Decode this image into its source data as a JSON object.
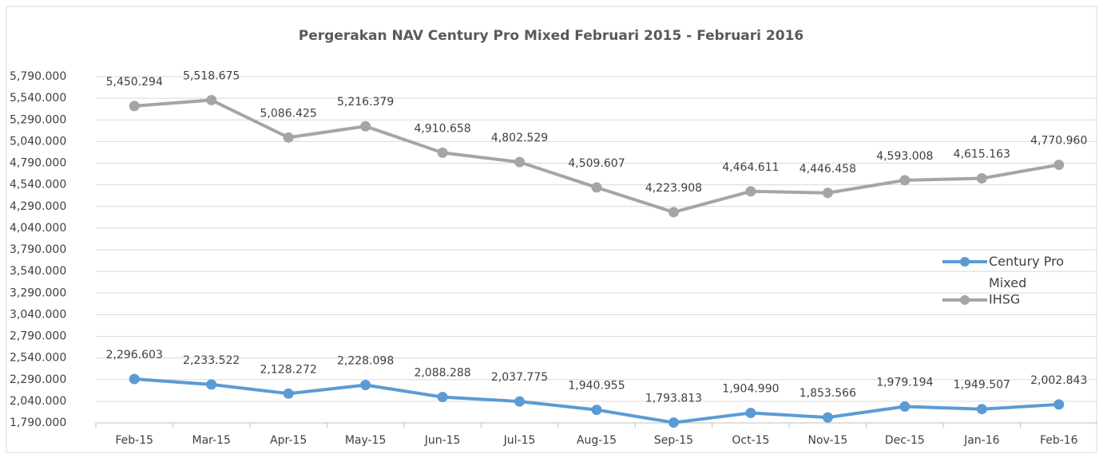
{
  "chart_data": {
    "type": "line",
    "title": "Pergerakan NAV Century Pro Mixed Februari 2015 - Februari 2016",
    "categories": [
      "Feb-15",
      "Mar-15",
      "Apr-15",
      "May-15",
      "Jun-15",
      "Jul-15",
      "Aug-15",
      "Sep-15",
      "Oct-15",
      "Nov-15",
      "Dec-15",
      "Jan-16",
      "Feb-16"
    ],
    "series": [
      {
        "name": "Century Pro Mixed",
        "color": "#5b9bd5",
        "values": [
          2296.603,
          2233.522,
          2128.272,
          2228.098,
          2088.288,
          2037.775,
          1940.955,
          1793.813,
          1904.99,
          1853.566,
          1979.194,
          1949.507,
          2002.843
        ],
        "value_labels": [
          "2,296.603",
          "2,233.522",
          "2,128.272",
          "2,228.098",
          "2,088.288",
          "2,037.775",
          "1,940.955",
          "1,793.813",
          "1,904.990",
          "1,853.566",
          "1,979.194",
          "1,949.507",
          "2,002.843"
        ]
      },
      {
        "name": "IHSG",
        "color": "#a5a5a5",
        "values": [
          5450.294,
          5518.675,
          5086.425,
          5216.379,
          4910.658,
          4802.529,
          4509.607,
          4223.908,
          4464.611,
          4446.458,
          4593.008,
          4615.163,
          4770.96
        ],
        "value_labels": [
          "5,450.294",
          "5,518.675",
          "5,086.425",
          "5,216.379",
          "4,910.658",
          "4,802.529",
          "4,509.607",
          "4,223.908",
          "4,464.611",
          "4,446.458",
          "4,593.008",
          "4,615.163",
          "4,770.960"
        ]
      }
    ],
    "ylim": [
      1790,
      5790
    ],
    "yticks": [
      {
        "value": 1790,
        "label": "1,790.000"
      },
      {
        "value": 2040,
        "label": "2,040.000"
      },
      {
        "value": 2290,
        "label": "2,290.000"
      },
      {
        "value": 2540,
        "label": "2,540.000"
      },
      {
        "value": 2790,
        "label": "2,790.000"
      },
      {
        "value": 3040,
        "label": "3,040.000"
      },
      {
        "value": 3290,
        "label": "3,290.000"
      },
      {
        "value": 3540,
        "label": "3,540.000"
      },
      {
        "value": 3790,
        "label": "3,790.000"
      },
      {
        "value": 4040,
        "label": "4,040.000"
      },
      {
        "value": 4290,
        "label": "4,290.000"
      },
      {
        "value": 4540,
        "label": "4,540.000"
      },
      {
        "value": 4790,
        "label": "4,790.000"
      },
      {
        "value": 5040,
        "label": "5,040.000"
      },
      {
        "value": 5290,
        "label": "5,290.000"
      },
      {
        "value": 5540,
        "label": "5,540.000"
      },
      {
        "value": 5790,
        "label": "5,790.000"
      }
    ],
    "grid": true,
    "legend": "right"
  }
}
